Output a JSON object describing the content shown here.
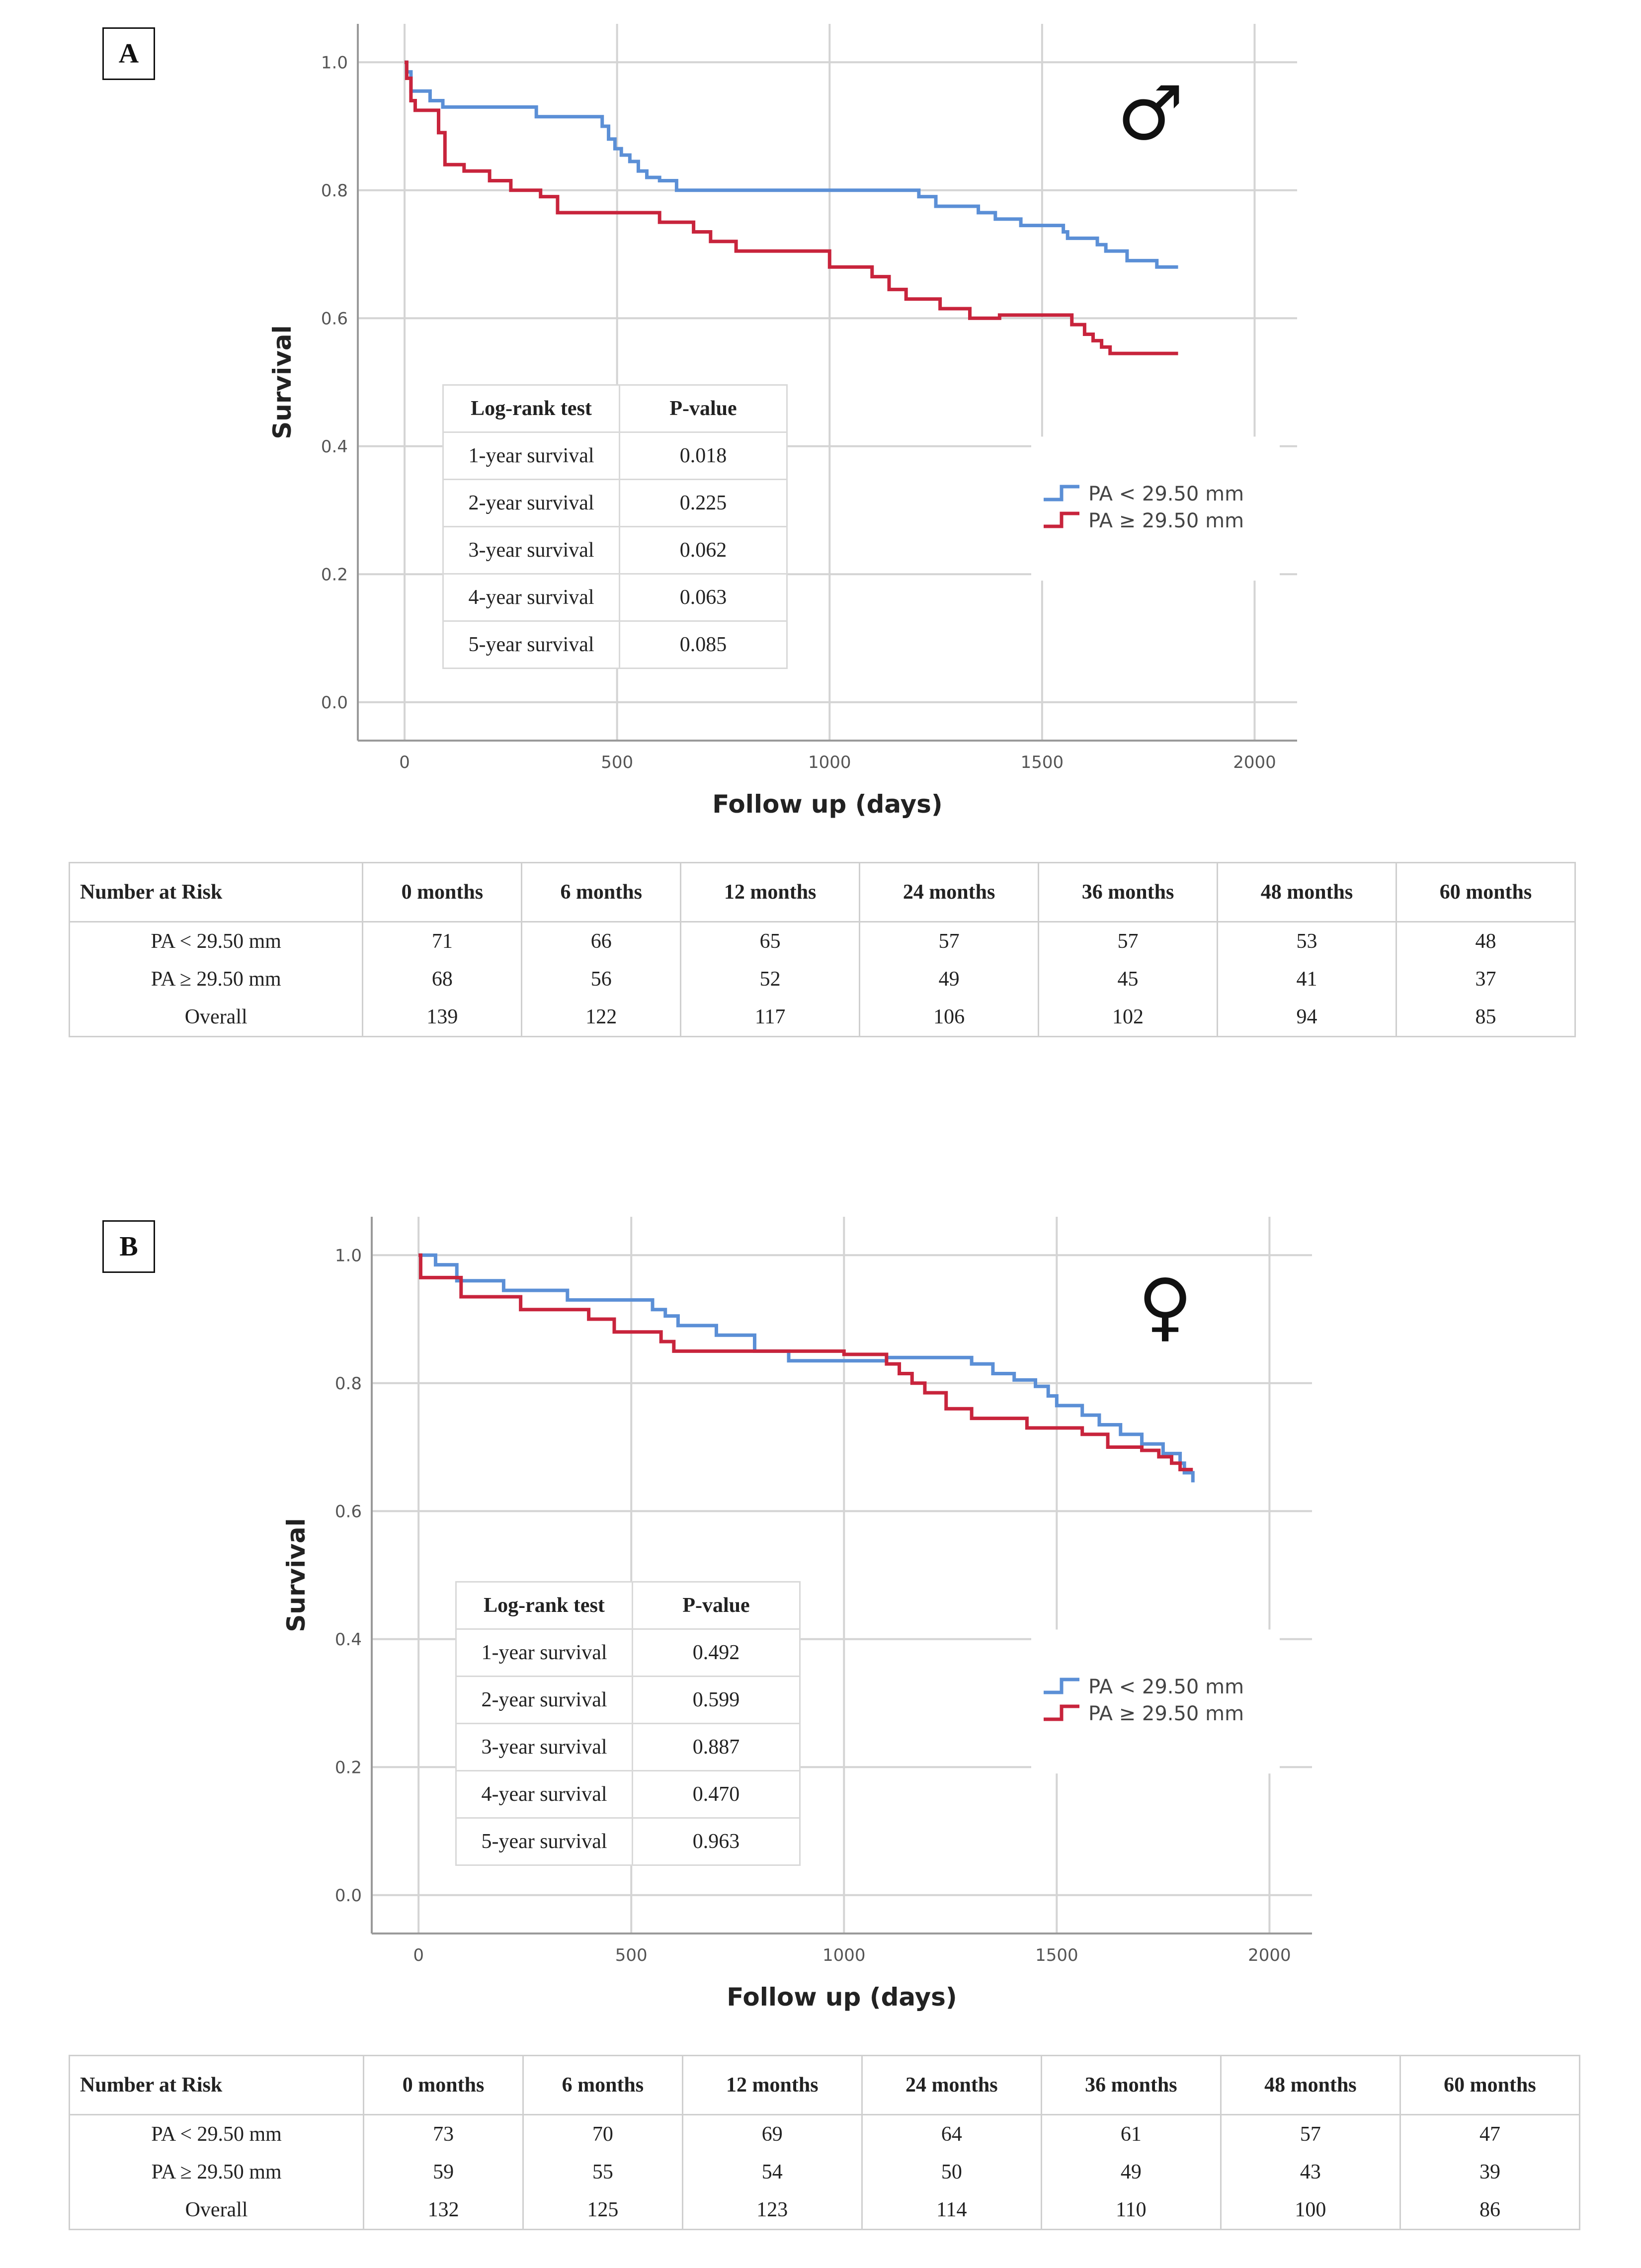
{
  "figure": {
    "series_colors": {
      "low": "#5b8fd6",
      "high": "#c8243c"
    },
    "grid_color": "#d4d4d4"
  },
  "chart_data": [
    {
      "panel": "A",
      "type": "line",
      "step": true,
      "symbol": "♂",
      "symbol_name": "male-symbol-icon",
      "xlabel": "Follow up (days)",
      "ylabel": "Survival",
      "xlim": [
        -110,
        2100
      ],
      "ylim": [
        -0.06,
        1.06
      ],
      "xticks": [
        0,
        500,
        1000,
        1500,
        2000
      ],
      "xtick_labels": [
        "0",
        "500",
        "1000",
        "1500",
        "2000"
      ],
      "yticks": [
        0,
        0.2,
        0.4,
        0.6,
        0.8,
        1.0
      ],
      "ytick_labels": [
        "0.0",
        "0.2",
        "0.4",
        "0.6",
        "0.8",
        "1.0"
      ],
      "grid": true,
      "legend_position": "right",
      "series": [
        {
          "name": "PA < 29.50 mm",
          "color": "#5b8fd6",
          "x": [
            0,
            5,
            15,
            60,
            90,
            310,
            465,
            480,
            495,
            510,
            530,
            550,
            570,
            600,
            640,
            1210,
            1250,
            1350,
            1390,
            1450,
            1550,
            1560,
            1630,
            1650,
            1700,
            1770,
            1820
          ],
          "y": [
            1.0,
            0.985,
            0.955,
            0.94,
            0.93,
            0.915,
            0.9,
            0.88,
            0.865,
            0.855,
            0.845,
            0.83,
            0.82,
            0.815,
            0.8,
            0.79,
            0.775,
            0.765,
            0.755,
            0.745,
            0.735,
            0.725,
            0.715,
            0.705,
            0.69,
            0.68,
            0.68
          ]
        },
        {
          "name": "PA ≥ 29.50 mm",
          "color": "#c8243c",
          "x": [
            0,
            5,
            15,
            25,
            80,
            95,
            140,
            200,
            250,
            320,
            360,
            600,
            680,
            720,
            780,
            1000,
            1100,
            1140,
            1180,
            1260,
            1330,
            1400,
            1570,
            1600,
            1620,
            1640,
            1660,
            1700,
            1820
          ],
          "y": [
            1.0,
            0.975,
            0.94,
            0.925,
            0.89,
            0.84,
            0.83,
            0.815,
            0.8,
            0.79,
            0.765,
            0.75,
            0.735,
            0.72,
            0.705,
            0.68,
            0.665,
            0.645,
            0.63,
            0.615,
            0.6,
            0.605,
            0.59,
            0.575,
            0.565,
            0.555,
            0.545,
            0.545,
            0.545
          ]
        }
      ],
      "logrank_table": {
        "header": [
          "Log-rank test",
          "P-value"
        ],
        "rows": [
          [
            "1-year survival",
            "0.018"
          ],
          [
            "2-year survival",
            "0.225"
          ],
          [
            "3-year survival",
            "0.062"
          ],
          [
            "4-year survival",
            "0.063"
          ],
          [
            "5-year survival",
            "0.085"
          ]
        ]
      },
      "risk_table": {
        "header": [
          "Number at Risk",
          "0 months",
          "6 months",
          "12 months",
          "24 months",
          "36 months",
          "48 months",
          "60 months"
        ],
        "rows": [
          [
            "PA < 29.50 mm",
            "71",
            "66",
            "65",
            "57",
            "57",
            "53",
            "48"
          ],
          [
            "PA ≥ 29.50 mm",
            "68",
            "56",
            "52",
            "49",
            "45",
            "41",
            "37"
          ],
          [
            "Overall",
            "139",
            "122",
            "117",
            "106",
            "102",
            "94",
            "85"
          ]
        ]
      }
    },
    {
      "panel": "B",
      "type": "line",
      "step": true,
      "symbol": "♀",
      "symbol_name": "female-symbol-icon",
      "xlabel": "Follow up (days)",
      "ylabel": "Survival",
      "xlim": [
        -110,
        2100
      ],
      "ylim": [
        -0.06,
        1.06
      ],
      "xticks": [
        0,
        500,
        1000,
        1500,
        2000
      ],
      "xtick_labels": [
        "0",
        "500",
        "1000",
        "1500",
        "2000"
      ],
      "yticks": [
        0,
        0.2,
        0.4,
        0.6,
        0.8,
        1.0
      ],
      "ytick_labels": [
        "0.0",
        "0.2",
        "0.4",
        "0.6",
        "0.8",
        "1.0"
      ],
      "grid": true,
      "legend_position": "right",
      "series": [
        {
          "name": "PA < 29.50 mm",
          "color": "#5b8fd6",
          "x": [
            0,
            40,
            90,
            200,
            350,
            550,
            580,
            610,
            700,
            790,
            870,
            1100,
            1300,
            1350,
            1400,
            1450,
            1480,
            1500,
            1560,
            1600,
            1650,
            1700,
            1750,
            1790,
            1800,
            1820
          ],
          "y": [
            1.0,
            0.985,
            0.96,
            0.945,
            0.93,
            0.915,
            0.905,
            0.89,
            0.875,
            0.85,
            0.835,
            0.84,
            0.83,
            0.815,
            0.805,
            0.795,
            0.78,
            0.765,
            0.75,
            0.735,
            0.72,
            0.705,
            0.69,
            0.675,
            0.66,
            0.645
          ]
        },
        {
          "name": "PA ≥ 29.50 mm",
          "color": "#c8243c",
          "x": [
            0,
            5,
            100,
            240,
            400,
            460,
            570,
            600,
            1000,
            1100,
            1130,
            1160,
            1190,
            1240,
            1300,
            1430,
            1560,
            1620,
            1700,
            1740,
            1770,
            1790,
            1820
          ],
          "y": [
            1.0,
            0.965,
            0.935,
            0.915,
            0.9,
            0.88,
            0.865,
            0.85,
            0.845,
            0.83,
            0.815,
            0.8,
            0.785,
            0.76,
            0.745,
            0.73,
            0.72,
            0.7,
            0.695,
            0.685,
            0.675,
            0.665,
            0.665
          ]
        }
      ],
      "logrank_table": {
        "header": [
          "Log-rank test",
          "P-value"
        ],
        "rows": [
          [
            "1-year survival",
            "0.492"
          ],
          [
            "2-year survival",
            "0.599"
          ],
          [
            "3-year survival",
            "0.887"
          ],
          [
            "4-year survival",
            "0.470"
          ],
          [
            "5-year survival",
            "0.963"
          ]
        ]
      },
      "risk_table": {
        "header": [
          "Number at Risk",
          "0 months",
          "6 months",
          "12 months",
          "24 months",
          "36 months",
          "48 months",
          "60 months"
        ],
        "rows": [
          [
            "PA < 29.50 mm",
            "73",
            "70",
            "69",
            "64",
            "61",
            "57",
            "47"
          ],
          [
            "PA ≥ 29.50 mm",
            "59",
            "55",
            "54",
            "50",
            "49",
            "43",
            "39"
          ],
          [
            "Overall",
            "132",
            "125",
            "123",
            "114",
            "110",
            "100",
            "86"
          ]
        ]
      }
    }
  ]
}
